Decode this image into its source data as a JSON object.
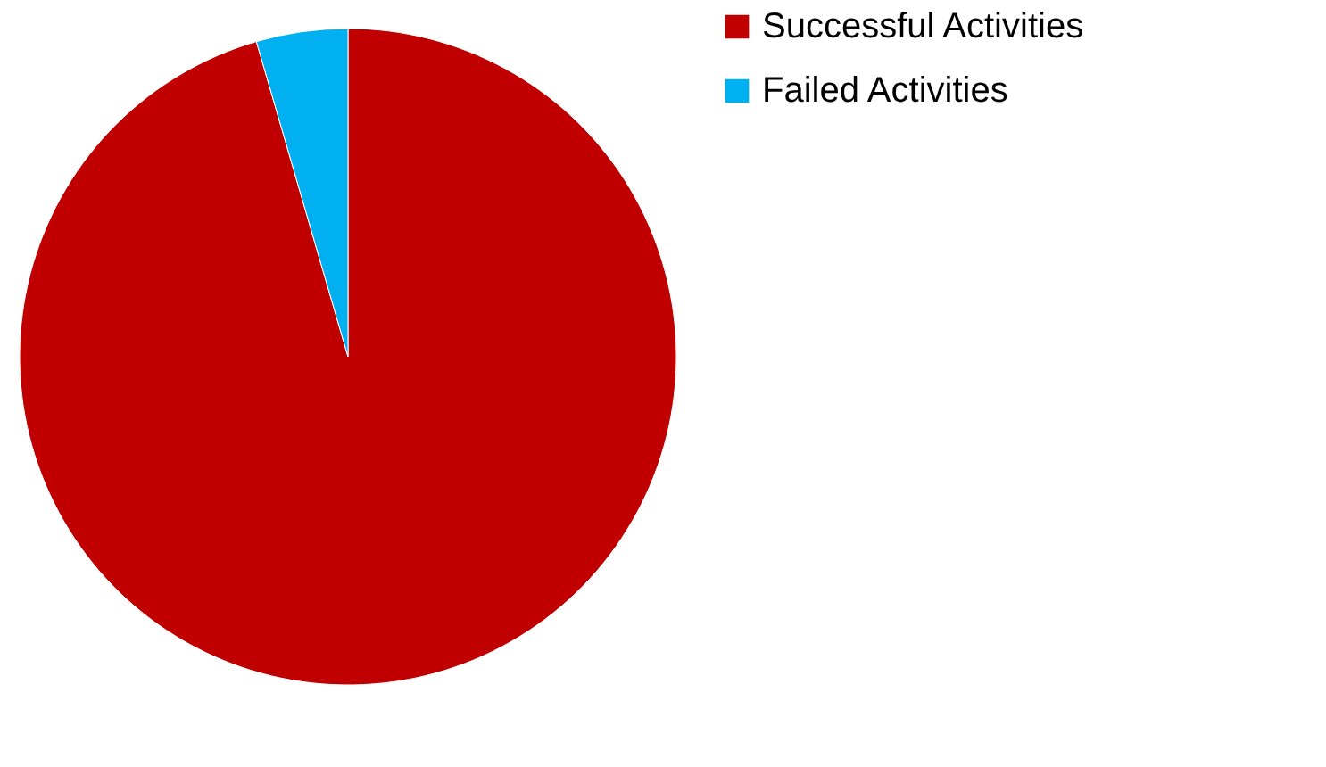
{
  "chart_data": {
    "type": "pie",
    "categories": [
      "Successful Activities",
      "Failed Activities"
    ],
    "values": [
      95.5,
      4.5
    ],
    "colors": [
      "#c00000",
      "#00b0f0"
    ],
    "legend": "right"
  }
}
